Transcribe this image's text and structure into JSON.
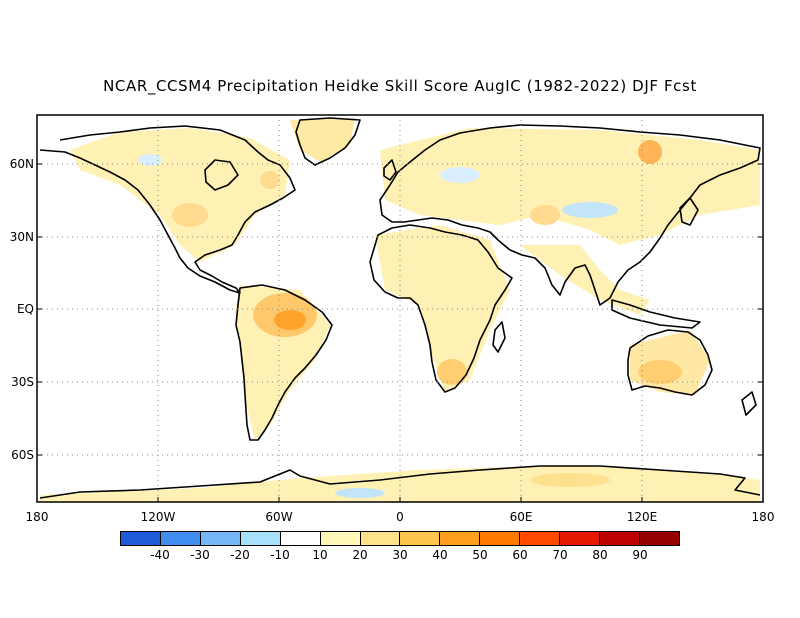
{
  "title": "NCAR_CCSM4 Precipitation Heidke Skill Score AugIC (1982-2022) DJF Fcst",
  "lat_labels": [
    "60N",
    "30N",
    "EQ",
    "30S",
    "60S"
  ],
  "lon_labels": [
    "180",
    "120W",
    "60W",
    "0",
    "60E",
    "120E",
    "180"
  ],
  "colorbar": {
    "ticks": [
      "-40",
      "-30",
      "-20",
      "-10",
      "10",
      "20",
      "30",
      "40",
      "50",
      "60",
      "70",
      "80",
      "90"
    ],
    "colors": [
      "#1f5bd6",
      "#3f8ef0",
      "#76b8f7",
      "#a6e1f9",
      "#ffffff",
      "#fff6b8",
      "#ffe38a",
      "#ffc54f",
      "#ff9f1f",
      "#ff7a00",
      "#ff4a00",
      "#e61a00",
      "#bf0000",
      "#960000"
    ]
  },
  "map": {
    "projection": "cylindrical equidistant",
    "gridlines": "dotted, every 60 degrees longitude and 30 degrees latitude"
  }
}
